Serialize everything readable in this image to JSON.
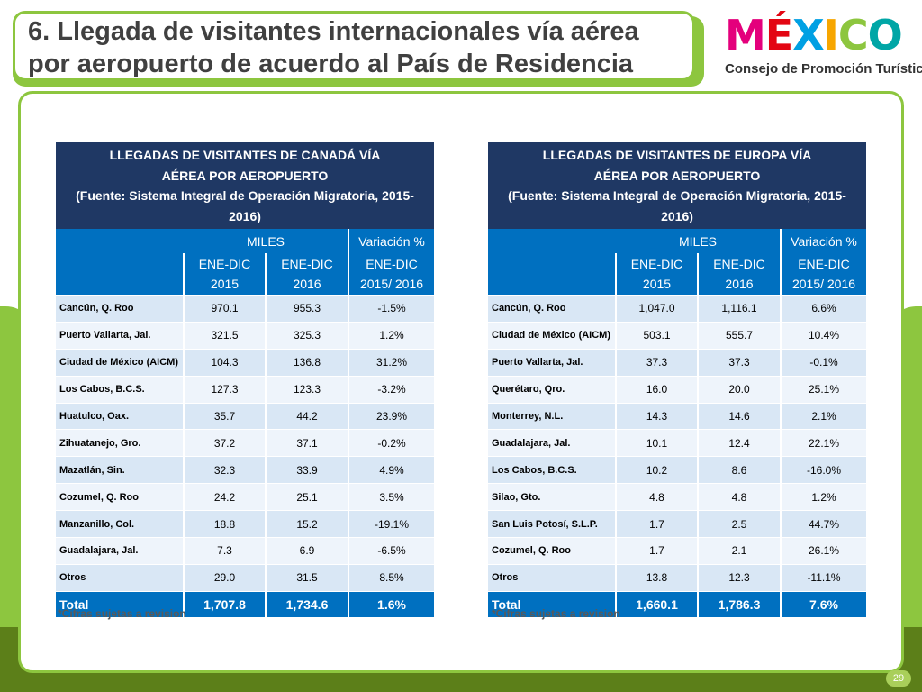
{
  "title": {
    "line1": "6. Llegada de visitantes internacionales vía aérea",
    "line2": "por aeropuerto de acuerdo al País de Residencia"
  },
  "logo": {
    "word": "MÉXICO",
    "caption": "Consejo de Promoción Turística",
    "letter_colors": [
      "#e4007c",
      "#e30613",
      "#00a0e3",
      "#f7a600",
      "#8dc63f",
      "#00a6a6"
    ]
  },
  "colors": {
    "header_dark": "#1f3864",
    "header_blue": "#0070c0",
    "row_light": "#d9e7f5",
    "accent_green": "#8dc63f"
  },
  "tables": [
    {
      "title_lines": [
        "LLEGADAS DE VISITANTES DE CANADÁ VÍA",
        "AÉREA POR AEROPUERTO",
        "(Fuente: Sistema Integral de Operación Migratoria, 2015-",
        "2016)"
      ],
      "miles_label": "MILES",
      "variation_label": "Variación %",
      "col_2015": [
        "ENE-DIC",
        "2015"
      ],
      "col_2016": [
        "ENE-DIC",
        "2016"
      ],
      "col_var": [
        "ENE-DIC",
        "2015/ 2016"
      ],
      "rows": [
        {
          "name": "Cancún, Q. Roo",
          "v2015": "970.1",
          "v2016": "955.3",
          "var": "-1.5%"
        },
        {
          "name": "Puerto Vallarta, Jal.",
          "v2015": "321.5",
          "v2016": "325.3",
          "var": "1.2%"
        },
        {
          "name": "Ciudad de México (AICM)",
          "v2015": "104.3",
          "v2016": "136.8",
          "var": "31.2%"
        },
        {
          "name": "Los Cabos, B.C.S.",
          "v2015": "127.3",
          "v2016": "123.3",
          "var": "-3.2%"
        },
        {
          "name": "Huatulco, Oax.",
          "v2015": "35.7",
          "v2016": "44.2",
          "var": "23.9%"
        },
        {
          "name": "Zihuatanejo, Gro.",
          "v2015": "37.2",
          "v2016": "37.1",
          "var": "-0.2%"
        },
        {
          "name": "Mazatlán, Sin.",
          "v2015": "32.3",
          "v2016": "33.9",
          "var": "4.9%"
        },
        {
          "name": "Cozumel, Q. Roo",
          "v2015": "24.2",
          "v2016": "25.1",
          "var": "3.5%"
        },
        {
          "name": "Manzanillo, Col.",
          "v2015": "18.8",
          "v2016": "15.2",
          "var": "-19.1%"
        },
        {
          "name": "Guadalajara, Jal.",
          "v2015": "7.3",
          "v2016": "6.9",
          "var": "-6.5%"
        },
        {
          "name": "Otros",
          "v2015": "29.0",
          "v2016": "31.5",
          "var": "8.5%"
        }
      ],
      "total": {
        "name": "Total",
        "v2015": "1,707.8",
        "v2016": "1,734.6",
        "var": "1.6%"
      },
      "note": "*Cifras sujetas a revision"
    },
    {
      "title_lines": [
        "LLEGADAS DE VISITANTES DE EUROPA VÍA",
        "AÉREA POR AEROPUERTO",
        "(Fuente: Sistema Integral de Operación Migratoria, 2015-",
        "2016)"
      ],
      "miles_label": "MILES",
      "variation_label": "Variación %",
      "col_2015": [
        "ENE-DIC",
        "2015"
      ],
      "col_2016": [
        "ENE-DIC",
        "2016"
      ],
      "col_var": [
        "ENE-DIC",
        "2015/ 2016"
      ],
      "rows": [
        {
          "name": "Cancún, Q. Roo",
          "v2015": "1,047.0",
          "v2016": "1,116.1",
          "var": "6.6%"
        },
        {
          "name": "Ciudad de México (AICM)",
          "v2015": "503.1",
          "v2016": "555.7",
          "var": "10.4%"
        },
        {
          "name": "Puerto Vallarta, Jal.",
          "v2015": "37.3",
          "v2016": "37.3",
          "var": "-0.1%"
        },
        {
          "name": "Querétaro, Qro.",
          "v2015": "16.0",
          "v2016": "20.0",
          "var": "25.1%"
        },
        {
          "name": "Monterrey, N.L.",
          "v2015": "14.3",
          "v2016": "14.6",
          "var": "2.1%"
        },
        {
          "name": "Guadalajara, Jal.",
          "v2015": "10.1",
          "v2016": "12.4",
          "var": "22.1%"
        },
        {
          "name": "Los Cabos, B.C.S.",
          "v2015": "10.2",
          "v2016": "8.6",
          "var": "-16.0%"
        },
        {
          "name": "Silao, Gto.",
          "v2015": "4.8",
          "v2016": "4.8",
          "var": "1.2%"
        },
        {
          "name": "San Luis Potosí, S.L.P.",
          "v2015": "1.7",
          "v2016": "2.5",
          "var": "44.7%"
        },
        {
          "name": "Cozumel, Q. Roo",
          "v2015": "1.7",
          "v2016": "2.1",
          "var": "26.1%"
        },
        {
          "name": "Otros",
          "v2015": "13.8",
          "v2016": "12.3",
          "var": "-11.1%"
        }
      ],
      "total": {
        "name": "Total",
        "v2015": "1,660.1",
        "v2016": "1,786.3",
        "var": "7.6%"
      },
      "note": "*Cifras sujetas a revision"
    }
  ],
  "page_number": "29"
}
